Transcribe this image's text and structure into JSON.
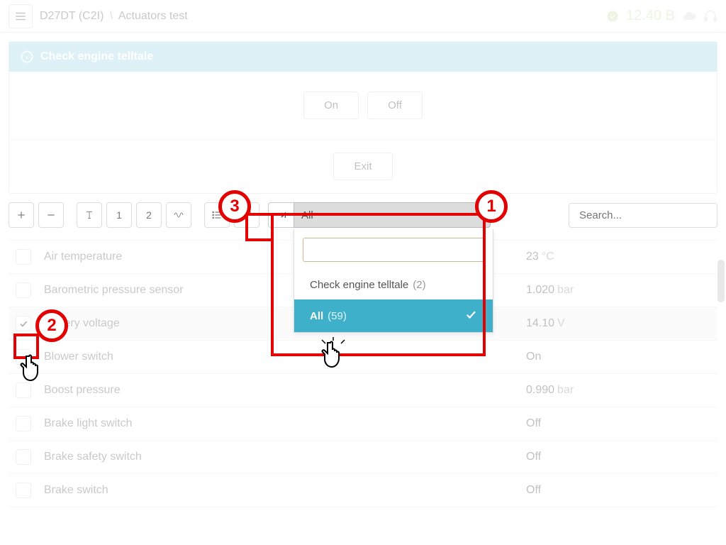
{
  "colors": {
    "accent": "#3eb0c9",
    "panel_header": "#b3e0ec",
    "annotation_red": "#e30000",
    "badge_bg": "#ffffff",
    "status_green": "#8bc34a",
    "border": "#dddddd",
    "muted_text": "#888888"
  },
  "topbar": {
    "breadcrumb_primary": "D27DT (C2I)",
    "breadcrumb_separator": "\\",
    "breadcrumb_secondary": "Actuators test",
    "voltage": "12.40 В"
  },
  "panel": {
    "title": "Check engine telltale",
    "on_label": "On",
    "off_label": "Off",
    "exit_label": "Exit"
  },
  "toolbar": {
    "page1": "1",
    "page2": "2",
    "search_placeholder": "Search..."
  },
  "filter": {
    "selected_label": "All",
    "search_value": "",
    "options": [
      {
        "label": "Check engine telltale",
        "count": "(2)",
        "selected": false
      },
      {
        "label": "All",
        "count": "(59)",
        "selected": true
      }
    ]
  },
  "params": [
    {
      "name": "Air temperature",
      "value": "23",
      "unit": "°C",
      "checked": false
    },
    {
      "name": "Barometric pressure sensor",
      "value": "1.020",
      "unit": "bar",
      "checked": false
    },
    {
      "name": "Battery voltage",
      "value": "14.10",
      "unit": "V",
      "checked": true,
      "highlight": true
    },
    {
      "name": "Blower switch",
      "value": "On",
      "unit": "",
      "checked": false
    },
    {
      "name": "Boost pressure",
      "value": "0.990",
      "unit": "bar",
      "checked": false
    },
    {
      "name": "Brake light switch",
      "value": "Off",
      "unit": "",
      "checked": false
    },
    {
      "name": "Brake safety switch",
      "value": "Off",
      "unit": "",
      "checked": false
    },
    {
      "name": "Brake switch",
      "value": "Off",
      "unit": "",
      "checked": false
    }
  ],
  "annotations": {
    "badges": {
      "1": "1",
      "2": "2",
      "3": "3"
    }
  }
}
